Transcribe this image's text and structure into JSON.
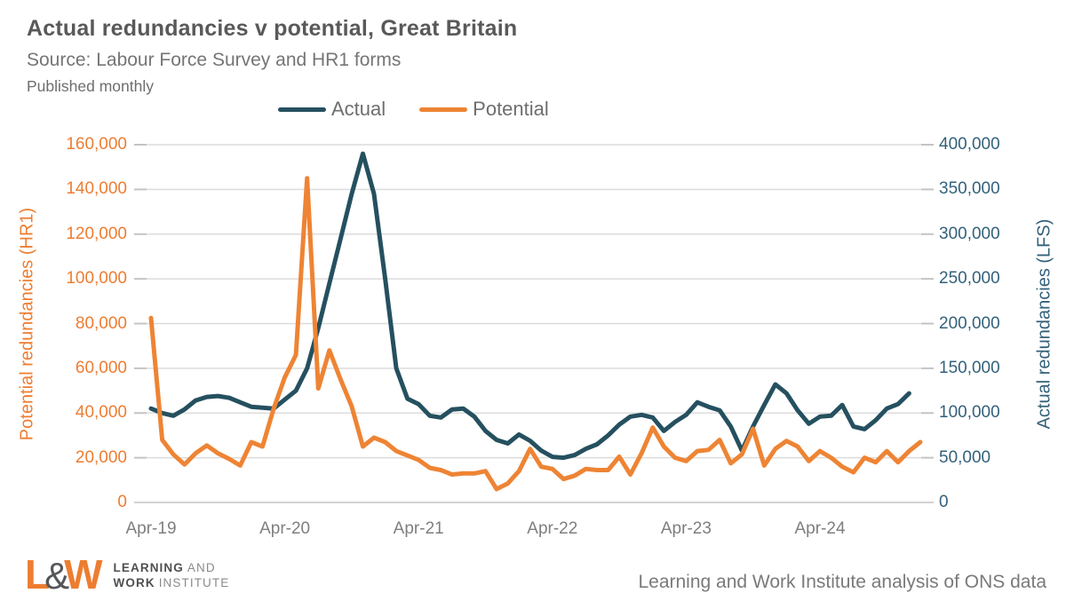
{
  "header": {
    "title": "Actual redundancies v potential, Great Britain",
    "source": "Source: Labour Force Survey and HR1 forms",
    "frequency": "Published monthly"
  },
  "legend": [
    {
      "label": "Actual",
      "color": "#25505F"
    },
    {
      "label": "Potential",
      "color": "#EE8434"
    }
  ],
  "footer": {
    "logo": {
      "l": "L",
      "amp": "&",
      "w": "W",
      "line1_bold": "LEARNING",
      "line1_light": "AND",
      "line2_bold": "WORK",
      "line2_light": "INSTITUTE"
    },
    "credit": "Learning and Work Institute analysis of ONS data"
  },
  "chart_data": {
    "type": "line",
    "title": "Actual redundancies v potential, Great Britain",
    "frequency": "monthly",
    "start_month": "Apr-19",
    "x_tick_labels": [
      "Apr-19",
      "Apr-20",
      "Apr-21",
      "Apr-22",
      "Apr-23",
      "Apr-24"
    ],
    "x_tick_month_step": 12,
    "grid": true,
    "legend_position": "top",
    "left_axis": {
      "label": "Potential redundancies (HR1)",
      "color": "#ED7D31",
      "range": [
        0,
        160000
      ],
      "ticks": [
        "0",
        "20,000",
        "40,000",
        "60,000",
        "80,000",
        "100,000",
        "120,000",
        "140,000",
        "160,000"
      ]
    },
    "right_axis": {
      "label": "Actual redundancies (LFS)",
      "color": "#33617A",
      "range": [
        0,
        400000
      ],
      "ticks": [
        "0",
        "50,000",
        "100,000",
        "150,000",
        "200,000",
        "250,000",
        "300,000",
        "350,000",
        "400,000"
      ]
    },
    "series": [
      {
        "name": "Actual",
        "axis": "right",
        "color": "#25505F",
        "first_month": "Apr-19",
        "last_month": "Dec-24",
        "values": [
          105000,
          100000,
          97000,
          104000,
          114000,
          118000,
          119000,
          117000,
          112000,
          107000,
          106000,
          105000,
          115000,
          125000,
          150000,
          195000,
          245000,
          295000,
          345000,
          390000,
          345000,
          250000,
          150000,
          116000,
          110000,
          97000,
          95000,
          104000,
          105000,
          96000,
          80000,
          70000,
          66000,
          76000,
          69000,
          58000,
          51000,
          50000,
          53000,
          60000,
          65000,
          75000,
          87000,
          96000,
          98000,
          95000,
          80000,
          90000,
          98000,
          112000,
          107000,
          103000,
          85000,
          58000,
          85000,
          109000,
          132000,
          122000,
          103000,
          88000,
          96000,
          97000,
          109000,
          85000,
          82000,
          92000,
          105000,
          110000,
          122000
        ]
      },
      {
        "name": "Potential",
        "axis": "left",
        "color": "#EE8434",
        "first_month": "Apr-19",
        "last_month": "Jan-25",
        "values": [
          82500,
          28000,
          21500,
          17000,
          22000,
          25500,
          22000,
          19500,
          16500,
          27000,
          25000,
          42000,
          56000,
          66000,
          145000,
          51000,
          68000,
          55000,
          43000,
          25000,
          29000,
          27000,
          23000,
          21000,
          19000,
          15500,
          14500,
          12500,
          13000,
          13000,
          14000,
          6000,
          8500,
          14000,
          24000,
          16000,
          15000,
          10500,
          12000,
          15000,
          14500,
          14500,
          20500,
          12500,
          22000,
          33500,
          25000,
          20000,
          18500,
          23000,
          23500,
          28000,
          17500,
          21500,
          33000,
          16500,
          24000,
          27500,
          25000,
          18500,
          23000,
          20000,
          16000,
          13500,
          20000,
          18000,
          23000,
          18000,
          23000,
          27000
        ]
      }
    ]
  }
}
